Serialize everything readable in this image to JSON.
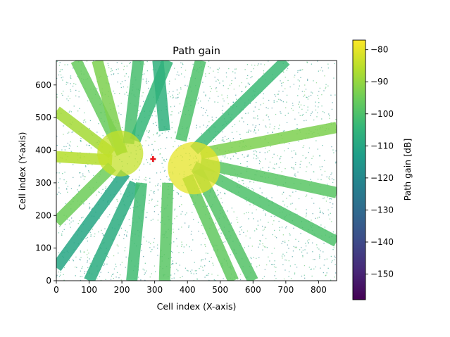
{
  "chart_data": {
    "type": "heatmap",
    "title": "Path gain",
    "xlabel": "Cell index (X-axis)",
    "ylabel": "Cell index (Y-axis)",
    "xlim": [
      0,
      855
    ],
    "ylim": [
      0,
      675
    ],
    "x_ticks": [
      0,
      100,
      200,
      300,
      400,
      500,
      600,
      700,
      800
    ],
    "y_ticks": [
      0,
      100,
      200,
      300,
      400,
      500,
      600
    ],
    "grid": false,
    "colorbar": {
      "label": "Path gain [dB]",
      "colormap": "viridis",
      "range": [
        -158,
        -77
      ],
      "ticks": [
        -80,
        -90,
        -100,
        -110,
        -120,
        -130,
        -140,
        -150
      ]
    },
    "marker": {
      "symbol": "plus",
      "color": "#e8141b",
      "x": 295,
      "y": 373
    },
    "rays": [
      {
        "x0": 200,
        "y0": 390,
        "x1": 60,
        "y1": 675,
        "gain": -96
      },
      {
        "x0": 200,
        "y0": 390,
        "x1": 125,
        "y1": 675,
        "gain": -93
      },
      {
        "x0": 220,
        "y0": 420,
        "x1": 250,
        "y1": 675,
        "gain": -101
      },
      {
        "x0": 240,
        "y0": 430,
        "x1": 340,
        "y1": 675,
        "gain": -104
      },
      {
        "x0": 170,
        "y0": 390,
        "x1": 0,
        "y1": 520,
        "gain": -88
      },
      {
        "x0": 170,
        "y0": 370,
        "x1": 0,
        "y1": 380,
        "gain": -86
      },
      {
        "x0": 170,
        "y0": 350,
        "x1": 0,
        "y1": 180,
        "gain": -95
      },
      {
        "x0": 210,
        "y0": 330,
        "x1": 0,
        "y1": 40,
        "gain": -110
      },
      {
        "x0": 240,
        "y0": 300,
        "x1": 100,
        "y1": 0,
        "gain": -108
      },
      {
        "x0": 260,
        "y0": 300,
        "x1": 230,
        "y1": 0,
        "gain": -102
      },
      {
        "x0": 340,
        "y0": 300,
        "x1": 330,
        "y1": 0,
        "gain": -98
      },
      {
        "x0": 400,
        "y0": 320,
        "x1": 540,
        "y1": 0,
        "gain": -97
      },
      {
        "x0": 430,
        "y0": 340,
        "x1": 600,
        "y1": 0,
        "gain": -99
      },
      {
        "x0": 420,
        "y0": 350,
        "x1": 855,
        "y1": 120,
        "gain": -100
      },
      {
        "x0": 440,
        "y0": 360,
        "x1": 855,
        "y1": 270,
        "gain": -98
      },
      {
        "x0": 440,
        "y0": 390,
        "x1": 855,
        "y1": 470,
        "gain": -93
      },
      {
        "x0": 420,
        "y0": 400,
        "x1": 700,
        "y1": 675,
        "gain": -103
      },
      {
        "x0": 380,
        "y0": 430,
        "x1": 440,
        "y1": 675,
        "gain": -100
      },
      {
        "x0": 330,
        "y0": 460,
        "x1": 310,
        "y1": 675,
        "gain": -106
      }
    ],
    "hotspots": [
      {
        "x": 195,
        "y": 390,
        "r": 70,
        "gain": -84
      },
      {
        "x": 420,
        "y": 345,
        "r": 80,
        "gain": -80
      }
    ],
    "speckle": {
      "count": 2200,
      "gain_range": [
        -125,
        -96
      ]
    }
  }
}
